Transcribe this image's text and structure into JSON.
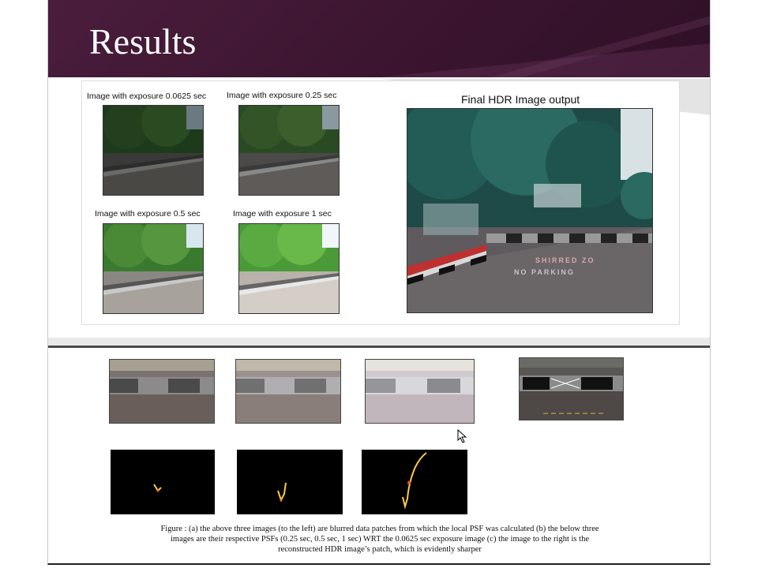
{
  "slide": {
    "title": "Results"
  },
  "exposures": [
    {
      "label": "Image with exposure 0.0625 sec"
    },
    {
      "label": "Image with exposure 0.25 sec"
    },
    {
      "label": "Image with exposure 0.5 sec"
    },
    {
      "label": "Image with exposure 1 sec"
    }
  ],
  "hdr": {
    "label": "Final HDR Image output"
  },
  "figure_caption": {
    "line1": "Figure : (a) the above three images (to the left) are blurred data patches from which the local PSF was calculated (b) the below three",
    "line2": "images are their respective PSFs (0.25 sec, 0.5 sec, 1 sec) WRT the 0.0625 sec exposure image (c) the image to the right is the",
    "line3": "reconstructed HDR image’s patch, which is evidently sharper"
  },
  "road_text": {
    "line1": "SHIRRED ZO",
    "line2": "NO PARKING"
  },
  "colors": {
    "header_bg": "#3b1530",
    "title_text": "#ffffff"
  }
}
